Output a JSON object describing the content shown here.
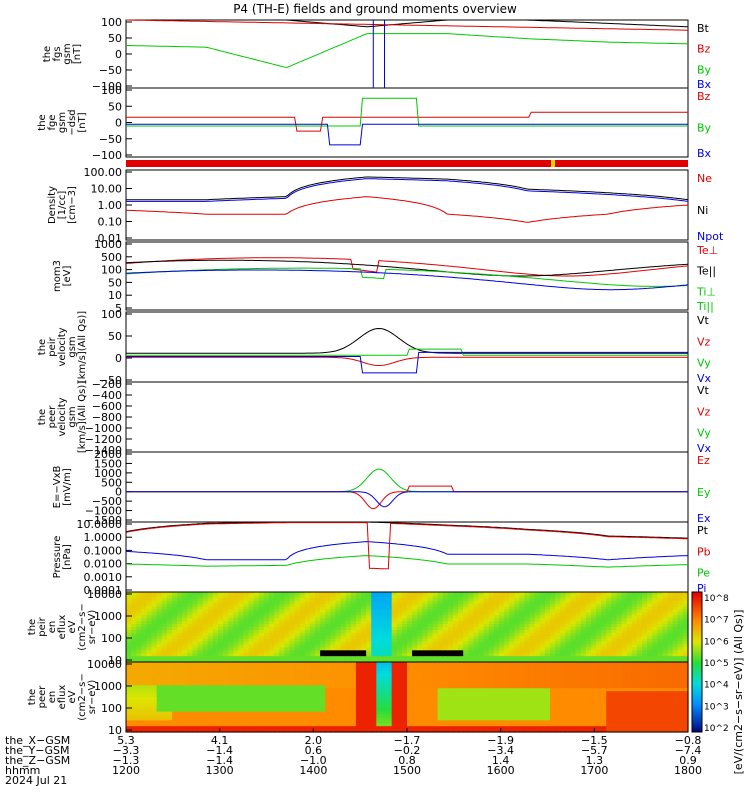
{
  "title": "P4 (TH-E) fields and ground moments overview",
  "colors": {
    "black": "#000000",
    "red": "#e00000",
    "green": "#00c800",
    "blue": "#0000e0",
    "ybar": "#d8d800"
  },
  "panels": [
    {
      "id": "fgs",
      "ylabel": [
        "the",
        "fgs",
        "gsm",
        "[nT]"
      ],
      "ticks": [
        "100",
        "50",
        "0",
        "−50",
        "−100"
      ],
      "legend": [
        {
          "text": "Bt",
          "color": "black"
        },
        {
          "text": "Bz",
          "color": "red"
        },
        {
          "text": "By",
          "color": "green"
        },
        {
          "text": "Bx",
          "color": "blue"
        }
      ]
    },
    {
      "id": "fge",
      "ylabel": [
        "the",
        "fge",
        "gsm",
        "−dsd",
        "[nT]"
      ],
      "ticks": [
        "100",
        "50",
        "0",
        "−50",
        "−100"
      ],
      "legend": [
        {
          "text": "Bz",
          "color": "red"
        },
        {
          "text": "By",
          "color": "green"
        },
        {
          "text": "Bx",
          "color": "blue"
        }
      ]
    },
    {
      "id": "density",
      "ylabel": [
        "Density",
        "[1/cc]",
        "[cm−3]"
      ],
      "ticks": [
        "100.00",
        "10.00",
        "1.00",
        "0.10",
        "0.01"
      ],
      "legend": [
        {
          "text": "Ne",
          "color": "red"
        },
        {
          "text": "Ni",
          "color": "black"
        },
        {
          "text": "Npot",
          "color": "blue"
        }
      ]
    },
    {
      "id": "temp",
      "ylabel": [
        "mom3",
        "[eV]"
      ],
      "ticks": [
        "1000",
        "500",
        "100",
        "50",
        "10",
        "5"
      ],
      "legend": [
        {
          "text": "Te⊥",
          "color": "red"
        },
        {
          "text": "Te||",
          "color": "black"
        },
        {
          "text": "Ti⊥",
          "color": "green"
        },
        {
          "text": "Ti||",
          "color": "green"
        }
      ]
    },
    {
      "id": "peir",
      "ylabel": [
        "the",
        "peir",
        "velocity",
        "gsm",
        "[km/s](All Qs)]"
      ],
      "ticks": [
        "100",
        "50",
        "0",
        "−50"
      ],
      "legend": [
        {
          "text": "Vt",
          "color": "black"
        },
        {
          "text": "Vz",
          "color": "red"
        },
        {
          "text": "Vy",
          "color": "green"
        },
        {
          "text": "Vx",
          "color": "blue"
        }
      ]
    },
    {
      "id": "peer",
      "ylabel": [
        "the",
        "peer",
        "velocity",
        "gsm",
        "[km/s](All Qs)]"
      ],
      "ticks": [
        "−200",
        "−400",
        "−600",
        "−800",
        "−1000",
        "−1200",
        "−1400"
      ],
      "legend": [
        {
          "text": "Vt",
          "color": "black"
        },
        {
          "text": "Vz",
          "color": "red"
        },
        {
          "text": "Vy",
          "color": "green"
        },
        {
          "text": "Vx",
          "color": "blue"
        }
      ]
    },
    {
      "id": "efield",
      "ylabel": [
        "E=−VxB",
        "[mV/m]"
      ],
      "ticks": [
        "2000",
        "1500",
        "1000",
        "500",
        "0",
        "−500",
        "−1000",
        "−1500"
      ],
      "legend": [
        {
          "text": "Ez",
          "color": "red"
        },
        {
          "text": "Ey",
          "color": "green"
        },
        {
          "text": "Ex",
          "color": "blue"
        }
      ]
    },
    {
      "id": "pressure",
      "ylabel": [
        "Pressure",
        "[nPa]"
      ],
      "ticks": [
        "10.0000",
        "1.0000",
        "0.1000",
        "0.0100",
        "0.0010",
        "0.0001"
      ],
      "legend": [
        {
          "text": "Pt",
          "color": "black"
        },
        {
          "text": "Pb",
          "color": "red"
        },
        {
          "text": "Pe",
          "color": "green"
        },
        {
          "text": "Pi",
          "color": "blue"
        }
      ]
    },
    {
      "id": "peir_spec",
      "ylabel": [
        "the",
        "peir",
        "en",
        "eflux",
        "eV",
        "(cm2−s−",
        "sr−eV)"
      ],
      "ticks": [
        "10000",
        "1000",
        "100",
        "10"
      ],
      "legend": []
    },
    {
      "id": "peer_spec",
      "ylabel": [
        "the",
        "peer",
        "en",
        "eflux",
        "eV",
        "(cm2−s−",
        "sr−eV)"
      ],
      "ticks": [
        "10000",
        "1000",
        "100",
        "10"
      ],
      "legend": []
    }
  ],
  "colorbar": {
    "ticks": [
      "10^8",
      "10^7",
      "10^6",
      "10^5",
      "10^4",
      "10^3",
      "10^2"
    ],
    "label": "[eV/(cm2−s−sr−eV)] (All Qs)]"
  },
  "xaxis": {
    "rows": [
      {
        "label": "the_X−GSM",
        "values": [
          "5.3",
          "4.1",
          "2.0",
          "−1.7",
          "−1.9",
          "−1.5",
          "−0.8"
        ]
      },
      {
        "label": "the_Y−GSM",
        "values": [
          "−3.3",
          "−1.4",
          "0.6",
          "−0.2",
          "−3.4",
          "−5.7",
          "−7.4"
        ]
      },
      {
        "label": "the_Z−GSM",
        "values": [
          "−1.3",
          "−1.4",
          "−1.0",
          "0.8",
          "1.4",
          "1.3",
          "0.9"
        ]
      },
      {
        "label": "hhmm",
        "values": [
          "1200",
          "1300",
          "1400",
          "1500",
          "1600",
          "1700",
          "1800"
        ]
      }
    ],
    "date": "2024 Jul 21"
  },
  "chart_data": {
    "type": "line",
    "title": "P4 (TH-E) fields and ground moments overview",
    "x_time_range": [
      "1200",
      "1800"
    ],
    "series_descriptions": {
      "fgs": {
        "ylim": [
          -100,
          100
        ],
        "series": [
          "Bt",
          "Bz",
          "By",
          "Bx"
        ]
      },
      "density": {
        "scale": "log",
        "ylim": [
          0.01,
          100
        ]
      },
      "pressure": {
        "scale": "log",
        "ylim": [
          0.0001,
          10
        ]
      }
    },
    "sample_points": {
      "hhmm": [
        "1200",
        "1300",
        "1400",
        "1430",
        "1500",
        "1600",
        "1700",
        "1800"
      ],
      "fgs_Bt": [
        100,
        100,
        100,
        80,
        100,
        100,
        90,
        80
      ],
      "fgs_By": [
        25,
        20,
        -40,
        60,
        60,
        45,
        35,
        30
      ],
      "density_Ni": [
        2,
        2,
        3,
        40,
        30,
        8,
        5,
        2
      ],
      "density_Ne": [
        0.5,
        0.3,
        0.3,
        3,
        0.3,
        0.1,
        0.3,
        1
      ],
      "pressure_Pt": [
        2,
        8,
        10,
        10,
        6,
        3,
        1,
        0.7
      ],
      "pressure_Pi": [
        0.08,
        0.02,
        0.02,
        0.4,
        0.05,
        0.05,
        0.02,
        0.04
      ],
      "pressure_Pe": [
        0.01,
        0.007,
        0.008,
        0.04,
        0.01,
        0.01,
        0.006,
        0.009
      ]
    }
  }
}
